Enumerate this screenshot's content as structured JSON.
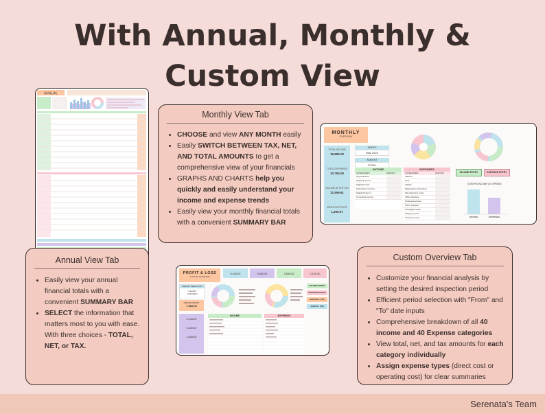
{
  "title": {
    "line1": "With Annual, Monthly &",
    "line2": "Custom View"
  },
  "monthly_tab": {
    "heading": "Monthly View Tab",
    "bullets": [
      [
        "CHOOSE",
        " and view ",
        "ANY MONTH",
        " easily"
      ],
      [
        "Easily ",
        "SWITCH BETWEEN TAX, NET, AND TOTAL AMOUNTS",
        " to get a comprehensive view of your financials"
      ],
      [
        "GRAPHS AND CHARTS",
        " help you quickly and easily understand your income and expense trends"
      ],
      [
        "Easily view your monthly financial totals with a convenient ",
        "SUMMARY BAR",
        ""
      ]
    ]
  },
  "annual_tab": {
    "heading": "Annual View Tab",
    "bullets": [
      [
        "Easily view your annual financial totals with a convenient ",
        "SUMMARY BAR",
        ""
      ],
      [
        "SELECT",
        " the information that matters most to you with ease. With three choices - ",
        "TOTAL, NET, or TAX.",
        ""
      ]
    ]
  },
  "custom_tab": {
    "heading": "Custom Overview Tab",
    "bullets": [
      [
        "Customize your financial analysis by setting the desired inspection period"
      ],
      [
        "Efficient period selection with \"From\" and \"To\" date inputs"
      ],
      [
        "Comprehensive breakdown of all ",
        "40 income and 40 Expense categories",
        ""
      ],
      [
        "View total, net, and tax amounts for ",
        "each category individually",
        ""
      ],
      [
        "Assign expense types",
        " (direct cost or operating cost) for clear summaries"
      ]
    ]
  },
  "monthly_sheet": {
    "header": "MONTHLY",
    "sub": "OVERVIEW",
    "month_label": "MONTH",
    "month_value": "May 2024",
    "amount_label": "AMOUNT",
    "amount_value": "TOTAL",
    "kpis": [
      {
        "label": "TOTAL INCOME",
        "value": "15,895.00"
      },
      {
        "label": "TOTAL EXPENSES",
        "value": "10,784.00"
      },
      {
        "label": "INCOME AFTER TAX",
        "value": "11,559.61"
      },
      {
        "label": "MONTH'S PROFIT",
        "value": "1,255.97"
      }
    ],
    "income_title": "INCOME",
    "expense_title": "EXPENSES",
    "cat_col": "CATEGORIES",
    "amt_col": "AMOUNT",
    "income_rows": [
      "Physical Book",
      "Physical Good 2",
      "Digital Product",
      "Subscription Service",
      "Digital Product 2",
      "Consulting Service"
    ],
    "expense_rows": [
      "Salaries",
      "Rent",
      "Utilities",
      "Marketing & Advertising",
      "Manufacturing Costs",
      "Office Supplies",
      "Professional Fees",
      "Office Supplies",
      "Photograph Gear",
      "Shipping Costs",
      "Inventory Costs"
    ],
    "income_entry": "INCOME ENTRY",
    "expense_entry": "EXPENSE ENTRY",
    "bar_title": "MONTH'S INCOME VS EXPENSE",
    "bar_labels": [
      "INCOME",
      "EXPENSES"
    ],
    "income_share": 0.6,
    "expense_share": 0.4
  },
  "annual_sheet": {
    "header": "ANNUAL"
  },
  "pl_sheet": {
    "header": "PROFIT & LOSS",
    "sub": "CUSTOM OVERVIEW",
    "period_label": "PERIOD SELECTION",
    "from": "1/1/2024",
    "to": "12/31/2024",
    "gross_label": "GROSS PROFIT",
    "gross_value": "7,560.00",
    "kpi_values": [
      "8,245.00",
      "5,400.00",
      "2,845.00",
      "2,100.00"
    ],
    "income_title": "INCOME",
    "expense_title": "EXPENSES",
    "buttons": [
      "INCOME ENTRY",
      "EXPENSE ENTRY",
      "MONTHLY TAB",
      "ANNUAL TAB"
    ]
  },
  "brand": "Serenata's Team",
  "colors": {
    "background": "#f6dcd9",
    "card": "#f3cbc0",
    "orange": "#fbc6a0",
    "blue": "#bfe3ec",
    "green": "#c8ebc8",
    "pink": "#f7c6cf",
    "lilac": "#d2c4ec"
  }
}
